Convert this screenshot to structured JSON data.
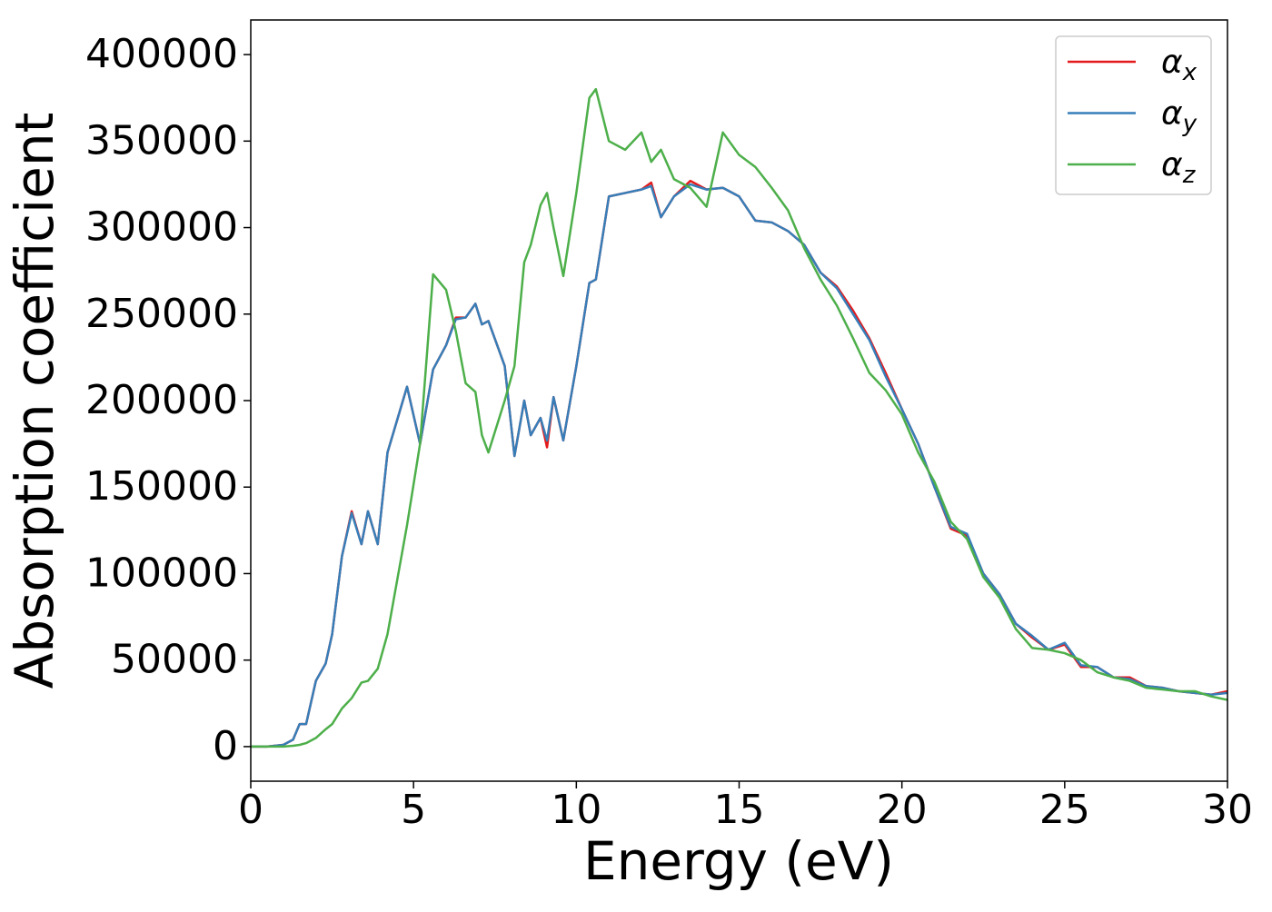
{
  "chart_data": {
    "type": "line",
    "xlabel": "Energy (eV)",
    "ylabel": "Absorption coefficient",
    "x": [
      0,
      0.5,
      1,
      1.3,
      1.5,
      1.7,
      2,
      2.3,
      2.5,
      2.8,
      3.1,
      3.4,
      3.6,
      3.9,
      4.2,
      4.8,
      5.2,
      5.6,
      6,
      6.3,
      6.6,
      6.9,
      7.1,
      7.3,
      7.8,
      8.1,
      8.4,
      8.6,
      8.9,
      9.1,
      9.3,
      9.6,
      10,
      10.4,
      10.6,
      11,
      11.5,
      12,
      12.3,
      12.6,
      13,
      13.5,
      14,
      14.5,
      15,
      15.5,
      16,
      16.5,
      17,
      17.5,
      18,
      18.5,
      19,
      19.5,
      20,
      20.5,
      21,
      21.5,
      22,
      22.5,
      23,
      23.5,
      24,
      24.5,
      25,
      25.5,
      26,
      26.5,
      27,
      27.5,
      28,
      28.5,
      29,
      29.5,
      30
    ],
    "series": [
      {
        "name": "αx",
        "color": "#e41a1c",
        "values": [
          0,
          0,
          1000,
          4000,
          13000,
          13000,
          38000,
          48000,
          65000,
          110000,
          136000,
          117000,
          136000,
          117000,
          170000,
          208000,
          175000,
          218000,
          232000,
          248000,
          248000,
          256000,
          244000,
          246000,
          220000,
          168000,
          200000,
          180000,
          190000,
          173000,
          202000,
          177000,
          220000,
          268000,
          270000,
          318000,
          320000,
          322000,
          326000,
          306000,
          318000,
          327000,
          322000,
          323000,
          318000,
          304000,
          303000,
          298000,
          290000,
          274000,
          266000,
          252000,
          236000,
          216000,
          195000,
          175000,
          150000,
          126000,
          122000,
          100000,
          88000,
          71000,
          63000,
          56000,
          59000,
          46000,
          46000,
          40000,
          40000,
          35000,
          34000,
          32000,
          31000,
          30000,
          32000
        ]
      },
      {
        "name": "αy",
        "color": "#377eb8",
        "values": [
          0,
          0,
          1000,
          4000,
          13000,
          13000,
          38000,
          48000,
          65000,
          110000,
          135000,
          117000,
          136000,
          117000,
          170000,
          208000,
          175000,
          218000,
          232000,
          247000,
          248000,
          256000,
          244000,
          246000,
          220000,
          168000,
          200000,
          180000,
          190000,
          177000,
          202000,
          177000,
          220000,
          268000,
          270000,
          318000,
          320000,
          322000,
          324000,
          306000,
          318000,
          325000,
          322000,
          323000,
          318000,
          304000,
          303000,
          298000,
          290000,
          274000,
          265000,
          250000,
          235000,
          214000,
          195000,
          175000,
          150000,
          127000,
          123000,
          100000,
          88000,
          71000,
          64000,
          56000,
          60000,
          47000,
          46000,
          40000,
          39000,
          35000,
          34000,
          32000,
          31000,
          30000,
          31000
        ]
      },
      {
        "name": "αz",
        "color": "#4daf4a",
        "values": [
          0,
          0,
          0,
          500,
          1000,
          2000,
          5000,
          10000,
          13000,
          22000,
          28000,
          37000,
          38000,
          45000,
          65000,
          128000,
          175000,
          273000,
          264000,
          240000,
          210000,
          205000,
          180000,
          170000,
          200000,
          220000,
          280000,
          290000,
          313000,
          320000,
          300000,
          272000,
          320000,
          375000,
          380000,
          350000,
          345000,
          355000,
          338000,
          345000,
          328000,
          323000,
          312000,
          355000,
          342000,
          335000,
          323000,
          310000,
          288000,
          270000,
          255000,
          236000,
          216000,
          206000,
          192000,
          170000,
          153000,
          130000,
          120000,
          98000,
          86000,
          68000,
          57000,
          56000,
          54000,
          50000,
          43000,
          40000,
          38000,
          34000,
          33000,
          32000,
          32000,
          29000,
          27000
        ]
      }
    ],
    "xlim": [
      0,
      30
    ],
    "xticks": [
      0,
      5,
      10,
      15,
      20,
      25,
      30
    ],
    "ylim": [
      -20000,
      420000
    ],
    "yticks": [
      0,
      50000,
      100000,
      150000,
      200000,
      250000,
      300000,
      350000,
      400000
    ],
    "grid": false,
    "legend": "upper right"
  }
}
